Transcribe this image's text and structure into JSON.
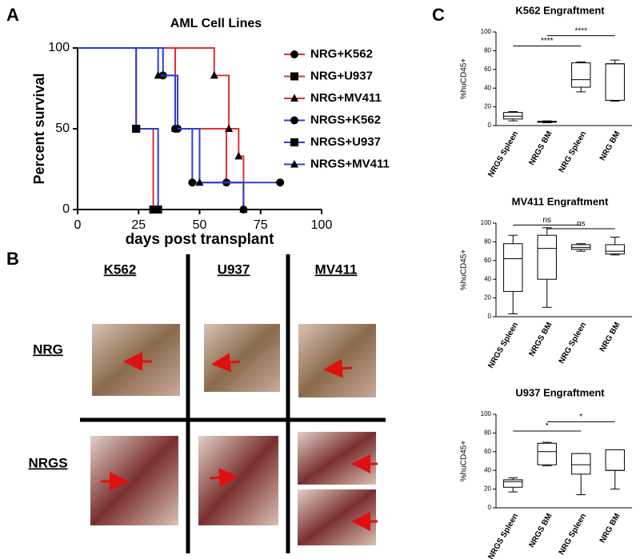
{
  "panel_labels": [
    "A",
    "B",
    "C"
  ],
  "photo_grid": {
    "columns": [
      "K562",
      "U937",
      "MV411"
    ],
    "rows": [
      "NRG",
      "NRGS"
    ]
  },
  "chart_data": [
    {
      "type": "survival",
      "title": "AML Cell Lines",
      "x_label": "days post transplant",
      "y_label": "Percent survival",
      "xlim": [
        0,
        100
      ],
      "xticks": [
        0,
        25,
        50,
        75,
        100
      ],
      "ylim": [
        0,
        100
      ],
      "yticks": [
        0,
        50,
        100
      ],
      "series": [
        {
          "name": "NRG+K562",
          "color": "#e03030",
          "marker": "circle",
          "x": [
            0,
            40,
            61,
            68
          ],
          "values": [
            100,
            50,
            16.7,
            0
          ]
        },
        {
          "name": "NRG+U937",
          "color": "#e03030",
          "marker": "square",
          "x": [
            0,
            24,
            31
          ],
          "values": [
            100,
            50,
            0
          ]
        },
        {
          "name": "NRG+MV411",
          "color": "#e03030",
          "marker": "triangle",
          "x": [
            0,
            56,
            62,
            66,
            68
          ],
          "values": [
            100,
            83,
            50,
            33,
            0
          ]
        },
        {
          "name": "NRGS+K562",
          "color": "#2b3fd0",
          "marker": "circle",
          "x": [
            0,
            35,
            41,
            47,
            83
          ],
          "values": [
            100,
            83,
            50,
            16.7,
            16.7
          ]
        },
        {
          "name": "NRGS+U937",
          "color": "#2b3fd0",
          "marker": "square",
          "x": [
            0,
            24,
            33
          ],
          "values": [
            100,
            50,
            0
          ]
        },
        {
          "name": "NRGS+MV411",
          "color": "#2b3fd0",
          "marker": "triangle",
          "x": [
            0,
            33,
            40,
            50,
            68
          ],
          "values": [
            100,
            83,
            50,
            16.7,
            0
          ]
        }
      ]
    },
    {
      "type": "box",
      "title": "K562 Engraftment",
      "y_label": "%huCD45+",
      "categories": [
        "NRGS Spleen",
        "NRGS BM",
        "NRG Spleen",
        "NRG BM"
      ],
      "ylim": [
        0,
        100
      ],
      "yticks": [
        0,
        20,
        40,
        60,
        80,
        100
      ],
      "boxes": [
        {
          "min": 5,
          "q1": 7,
          "median": 10,
          "q3": 14,
          "max": 15
        },
        {
          "min": 3,
          "q1": 3.5,
          "median": 4,
          "q3": 4.5,
          "max": 5
        },
        {
          "min": 36,
          "q1": 41,
          "median": 49,
          "q3": 67,
          "max": 68
        },
        {
          "min": 26,
          "q1": 27,
          "median": 66,
          "q3": 66,
          "max": 70
        }
      ],
      "annotations": [
        {
          "label": "****",
          "from": 0,
          "to": 2,
          "y": 85
        },
        {
          "label": "****",
          "from": 1,
          "to": 3,
          "y": 96
        }
      ]
    },
    {
      "type": "box",
      "title": "MV411 Engraftment",
      "y_label": "%huCD45+",
      "categories": [
        "NRGS Spleen",
        "NRGS BM",
        "NRG Spleen",
        "NRG BM"
      ],
      "ylim": [
        0,
        100
      ],
      "yticks": [
        0,
        20,
        40,
        60,
        80,
        100
      ],
      "boxes": [
        {
          "min": 3,
          "q1": 27,
          "median": 62,
          "q3": 78,
          "max": 87
        },
        {
          "min": 10,
          "q1": 40,
          "median": 73,
          "q3": 87,
          "max": 95
        },
        {
          "min": 70,
          "q1": 72,
          "median": 74,
          "q3": 77,
          "max": 78
        },
        {
          "min": 66,
          "q1": 67,
          "median": 70,
          "q3": 77,
          "max": 85
        }
      ],
      "annotations": [
        {
          "label": "ns",
          "from": 0,
          "to": 2,
          "y": 98
        },
        {
          "label": "ns",
          "from": 1,
          "to": 3,
          "y": 94
        }
      ]
    },
    {
      "type": "box",
      "title": "U937 Engraftment",
      "y_label": "%huCD45+",
      "categories": [
        "NRGS Spleen",
        "NRGS BM",
        "NRG Spleen",
        "NRG BM"
      ],
      "ylim": [
        0,
        100
      ],
      "yticks": [
        0,
        20,
        40,
        60,
        80,
        100
      ],
      "boxes": [
        {
          "min": 17,
          "q1": 22,
          "median": 28,
          "q3": 30,
          "max": 32
        },
        {
          "min": 45,
          "q1": 46,
          "median": 60,
          "q3": 69,
          "max": 70
        },
        {
          "min": 14,
          "q1": 36,
          "median": 46,
          "q3": 58,
          "max": 58
        },
        {
          "min": 20,
          "q1": 40,
          "median": 40,
          "q3": 62,
          "max": 62
        }
      ],
      "annotations": [
        {
          "label": "*",
          "from": 0,
          "to": 2,
          "y": 82
        },
        {
          "label": "*",
          "from": 1,
          "to": 3,
          "y": 92
        }
      ]
    }
  ]
}
